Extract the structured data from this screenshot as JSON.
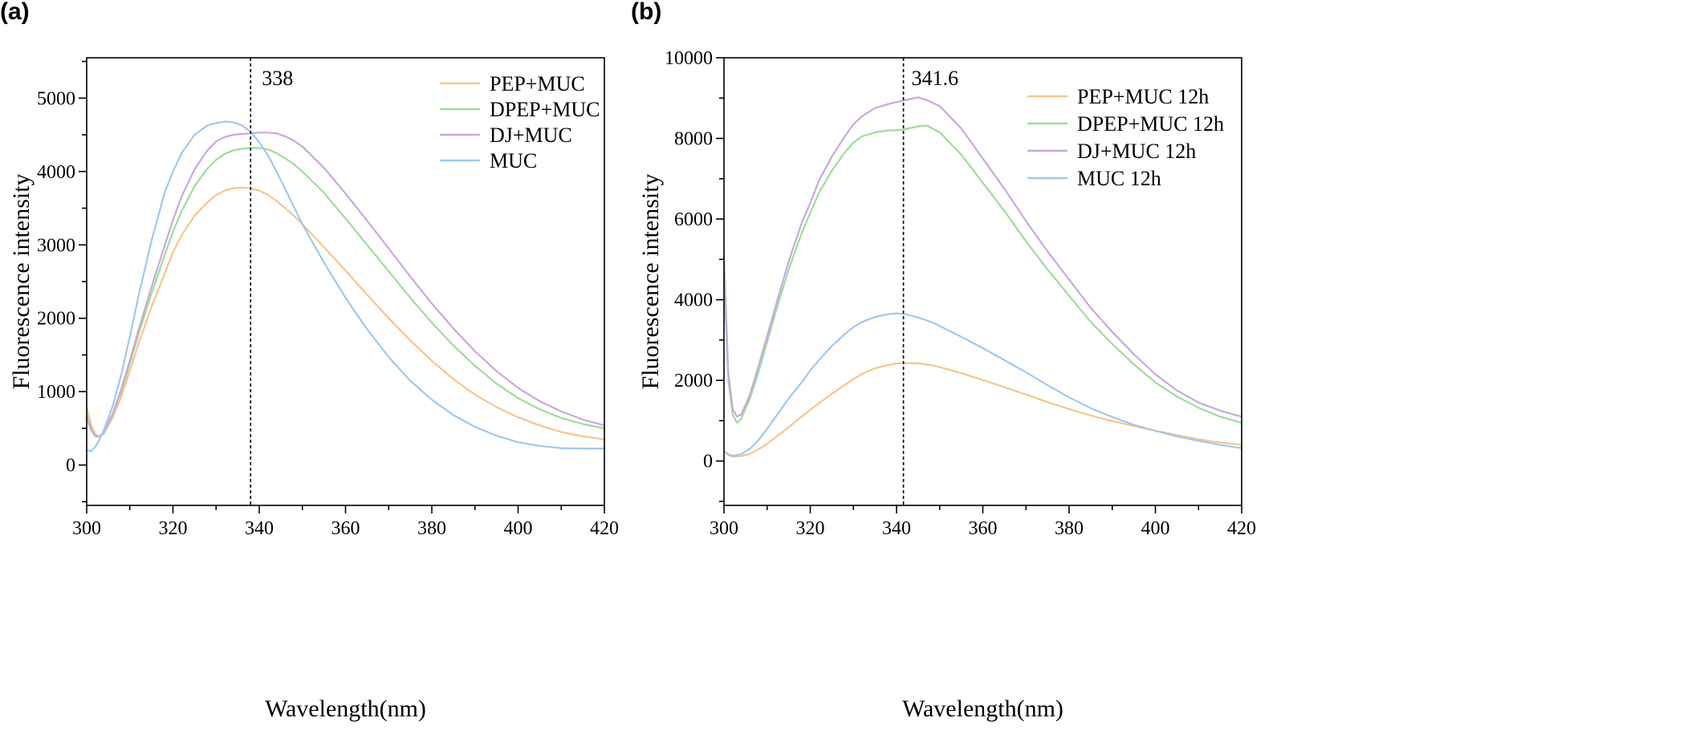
{
  "chart_data": [
    {
      "panel_label": "(a)",
      "type": "line",
      "xlabel": "Wavelength(nm)",
      "ylabel": "Fluorescence intensity",
      "xlim": [
        300,
        420
      ],
      "ylim": [
        -550,
        5550
      ],
      "xticks": [
        300,
        320,
        340,
        360,
        380,
        400,
        420
      ],
      "yticks": [
        0,
        1000,
        2000,
        3000,
        4000,
        5000
      ],
      "vline": {
        "x": 338,
        "label": "338"
      },
      "legend_position": "top-right",
      "series": [
        {
          "name": "PEP+MUC",
          "color": "#f7c58e",
          "x": [
            300,
            301,
            302,
            303,
            304,
            306,
            308,
            310,
            312,
            315,
            318,
            320,
            322,
            325,
            328,
            330,
            332,
            334,
            336,
            338,
            340,
            342,
            344,
            346,
            348,
            350,
            355,
            360,
            365,
            370,
            375,
            380,
            385,
            390,
            395,
            400,
            405,
            410,
            415,
            420
          ],
          "y": [
            780,
            560,
            420,
            390,
            430,
            640,
            930,
            1280,
            1650,
            2150,
            2600,
            2900,
            3130,
            3400,
            3580,
            3680,
            3740,
            3770,
            3780,
            3770,
            3740,
            3680,
            3600,
            3500,
            3400,
            3280,
            2970,
            2650,
            2320,
            2000,
            1700,
            1420,
            1170,
            960,
            790,
            650,
            540,
            450,
            390,
            350
          ]
        },
        {
          "name": "DPEP+MUC",
          "color": "#9fdc9a",
          "x": [
            300,
            301,
            302,
            303,
            304,
            306,
            308,
            310,
            312,
            315,
            318,
            320,
            322,
            325,
            328,
            330,
            332,
            334,
            336,
            338,
            340,
            342,
            344,
            346,
            348,
            350,
            355,
            360,
            365,
            370,
            375,
            380,
            385,
            390,
            395,
            400,
            405,
            410,
            415,
            420
          ],
          "y": [
            700,
            500,
            390,
            390,
            440,
            680,
            1000,
            1380,
            1780,
            2330,
            2850,
            3180,
            3460,
            3800,
            4040,
            4160,
            4240,
            4290,
            4310,
            4320,
            4320,
            4300,
            4250,
            4180,
            4100,
            4000,
            3710,
            3360,
            3000,
            2640,
            2280,
            1940,
            1630,
            1350,
            1110,
            910,
            760,
            640,
            560,
            500
          ]
        },
        {
          "name": "DJ+MUC",
          "color": "#c8a8e0",
          "x": [
            300,
            301,
            302,
            303,
            304,
            306,
            308,
            310,
            312,
            315,
            318,
            320,
            322,
            325,
            328,
            330,
            332,
            334,
            336,
            338,
            340,
            342,
            344,
            346,
            348,
            350,
            355,
            360,
            365,
            370,
            375,
            380,
            385,
            390,
            395,
            400,
            405,
            410,
            415,
            420
          ],
          "y": [
            650,
            480,
            390,
            390,
            450,
            700,
            1030,
            1420,
            1840,
            2420,
            2980,
            3340,
            3660,
            4030,
            4290,
            4410,
            4470,
            4500,
            4510,
            4520,
            4530,
            4530,
            4520,
            4480,
            4420,
            4340,
            4050,
            3700,
            3330,
            2950,
            2570,
            2200,
            1860,
            1550,
            1280,
            1050,
            870,
            730,
            620,
            540
          ]
        },
        {
          "name": "MUC",
          "color": "#9fc8ee",
          "x": [
            300,
            301,
            302,
            303,
            304,
            306,
            308,
            310,
            312,
            315,
            318,
            320,
            322,
            325,
            328,
            330,
            332,
            334,
            336,
            338,
            340,
            342,
            344,
            346,
            348,
            350,
            355,
            360,
            365,
            370,
            375,
            380,
            385,
            390,
            395,
            400,
            405,
            410,
            415,
            420
          ],
          "y": [
            200,
            190,
            250,
            350,
            480,
            800,
            1230,
            1750,
            2300,
            3050,
            3700,
            4000,
            4250,
            4500,
            4630,
            4660,
            4680,
            4670,
            4630,
            4540,
            4400,
            4220,
            4000,
            3760,
            3520,
            3280,
            2760,
            2280,
            1850,
            1470,
            1150,
            890,
            680,
            520,
            400,
            310,
            260,
            230,
            225,
            225
          ]
        }
      ]
    },
    {
      "panel_label": "(b)",
      "type": "line",
      "xlabel": "Wavelength(nm)",
      "ylabel": "Fluorescence intensity",
      "xlim": [
        300,
        420
      ],
      "ylim": [
        -1100,
        10000
      ],
      "xticks": [
        300,
        320,
        340,
        360,
        380,
        400,
        420
      ],
      "yticks": [
        0,
        2000,
        4000,
        6000,
        8000,
        10000
      ],
      "vline": {
        "x": 341.6,
        "label": "341.6"
      },
      "legend_position": "top-right",
      "series": [
        {
          "name": "PEP+MUC 12h",
          "color": "#f7c58e",
          "x": [
            300,
            301,
            302,
            304,
            306,
            308,
            310,
            312,
            315,
            318,
            320,
            322,
            325,
            328,
            330,
            332,
            335,
            338,
            340,
            342,
            345,
            348,
            350,
            355,
            360,
            365,
            370,
            375,
            380,
            385,
            390,
            395,
            400,
            405,
            410,
            415,
            420
          ],
          "y": [
            240,
            150,
            110,
            120,
            180,
            290,
            430,
            590,
            840,
            1100,
            1270,
            1430,
            1670,
            1890,
            2030,
            2160,
            2300,
            2380,
            2420,
            2430,
            2420,
            2380,
            2330,
            2180,
            2010,
            1830,
            1650,
            1460,
            1290,
            1130,
            990,
            870,
            750,
            640,
            540,
            460,
            400
          ]
        },
        {
          "name": "DPEP+MUC 12h",
          "color": "#9fdc9a",
          "x": [
            300,
            301,
            302,
            303,
            304,
            306,
            308,
            310,
            312,
            315,
            318,
            320,
            322,
            325,
            328,
            330,
            332,
            335,
            338,
            340,
            342,
            345,
            347,
            350,
            355,
            360,
            365,
            370,
            375,
            380,
            385,
            390,
            395,
            400,
            405,
            410,
            415,
            420
          ],
          "y": [
            4600,
            2000,
            1150,
            950,
            1050,
            1550,
            2200,
            2950,
            3700,
            4750,
            5650,
            6150,
            6650,
            7200,
            7650,
            7900,
            8050,
            8150,
            8200,
            8200,
            8230,
            8300,
            8320,
            8150,
            7600,
            6900,
            6200,
            5450,
            4750,
            4100,
            3450,
            2900,
            2400,
            1950,
            1600,
            1320,
            1100,
            950
          ]
        },
        {
          "name": "DJ+MUC 12h",
          "color": "#c8a8e0",
          "x": [
            300,
            301,
            302,
            303,
            304,
            306,
            308,
            310,
            312,
            315,
            318,
            320,
            322,
            325,
            328,
            330,
            332,
            335,
            338,
            340,
            342,
            345,
            347,
            350,
            355,
            360,
            365,
            370,
            375,
            380,
            385,
            390,
            395,
            400,
            405,
            410,
            415,
            420
          ],
          "y": [
            5100,
            2200,
            1300,
            1100,
            1150,
            1650,
            2350,
            3100,
            3850,
            4950,
            5900,
            6400,
            6950,
            7550,
            8050,
            8350,
            8550,
            8750,
            8850,
            8900,
            8950,
            9020,
            8950,
            8800,
            8250,
            7500,
            6750,
            5950,
            5200,
            4500,
            3800,
            3200,
            2650,
            2150,
            1750,
            1450,
            1250,
            1100
          ]
        },
        {
          "name": "MUC 12h",
          "color": "#9fc8ee",
          "x": [
            300,
            301,
            302,
            304,
            306,
            308,
            310,
            312,
            315,
            318,
            320,
            322,
            325,
            328,
            330,
            332,
            335,
            338,
            340,
            342,
            345,
            348,
            350,
            355,
            360,
            365,
            370,
            375,
            380,
            385,
            390,
            395,
            400,
            405,
            410,
            415,
            420
          ],
          "y": [
            250,
            170,
            130,
            170,
            300,
            520,
            800,
            1100,
            1550,
            1950,
            2250,
            2500,
            2850,
            3150,
            3320,
            3450,
            3570,
            3640,
            3660,
            3640,
            3560,
            3450,
            3350,
            3080,
            2800,
            2500,
            2200,
            1880,
            1580,
            1310,
            1090,
            900,
            750,
            610,
            500,
            400,
            320
          ]
        }
      ]
    }
  ]
}
